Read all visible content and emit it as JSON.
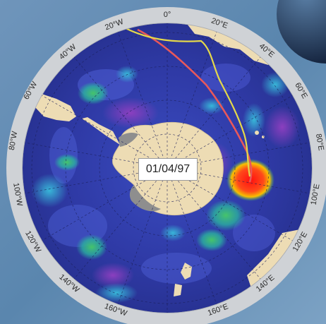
{
  "map": {
    "date_label": "01/04/97",
    "longitude_labels": {
      "top": "0°",
      "w20": "20°W",
      "w40": "40°W",
      "w60": "60°W",
      "w80": "80°W",
      "w100": "100°W",
      "w120": "120°W",
      "w140": "140°W",
      "w160": "160°W",
      "e20": "20°E",
      "e40": "40°E",
      "e60": "60°E",
      "e80": "80°E",
      "e100": "100°E",
      "e120": "120°E",
      "e140": "140°E",
      "e160": "160°E"
    },
    "track_colors": {
      "red_track": "#e8585a",
      "yellow_track": "#e4d84a"
    },
    "palette": {
      "ocean_deep": "#2b2f96",
      "ocean_mid": "#3f4fc4",
      "anomaly_high": "#e21c1c",
      "anomaly_mid": "#3ec06a",
      "land": "#eddcb4",
      "ice_shelf": "#8e8e8e",
      "bezel": "#cfd2d6"
    }
  }
}
